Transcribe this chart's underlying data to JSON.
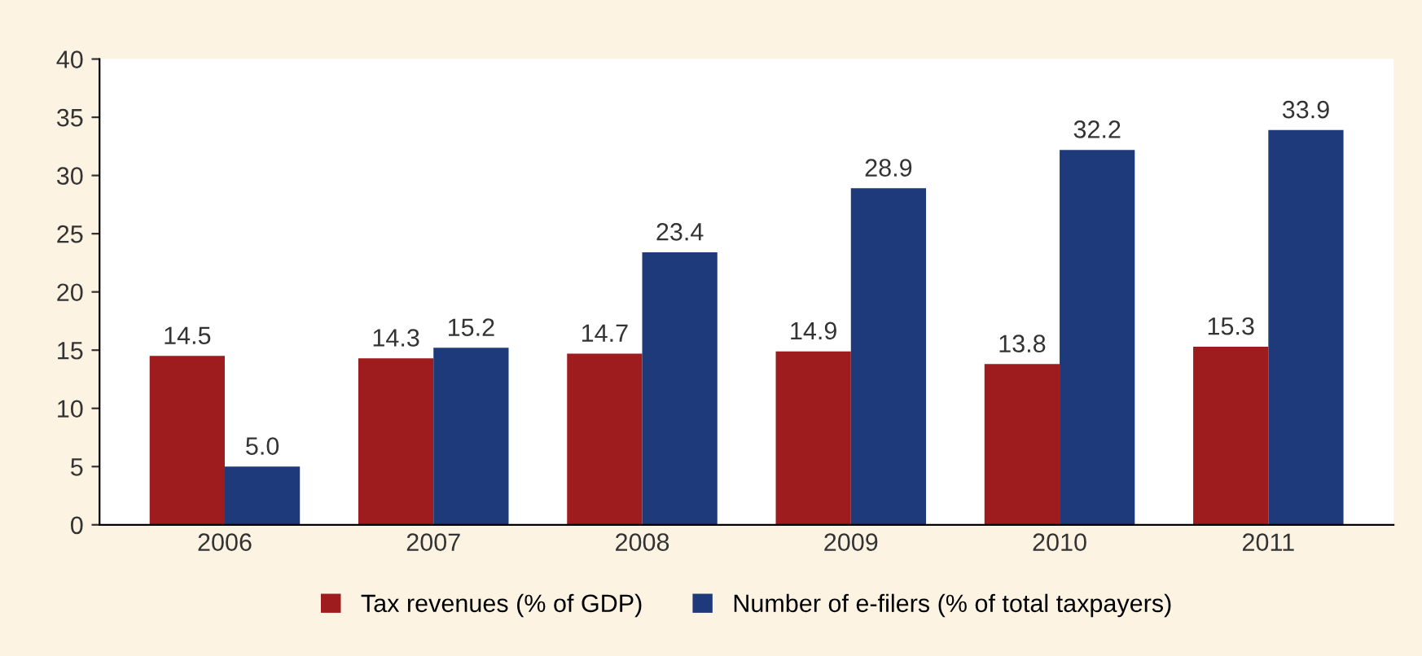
{
  "chart_data": {
    "type": "bar",
    "categories": [
      "2006",
      "2007",
      "2008",
      "2009",
      "2010",
      "2011"
    ],
    "series": [
      {
        "name": "Tax revenues (% of GDP)",
        "color": "#9e1b1e",
        "values": [
          14.5,
          14.3,
          14.7,
          14.9,
          13.8,
          15.3
        ]
      },
      {
        "name": "Number of e-filers (% of total taxpayers)",
        "color": "#1f3a7a",
        "values": [
          5.0,
          15.2,
          23.4,
          28.9,
          32.2,
          33.9
        ]
      }
    ],
    "value_labels": [
      [
        "14.5",
        "14.3",
        "14.7",
        "14.9",
        "13.8",
        "15.3"
      ],
      [
        "5.0",
        "15.2",
        "23.4",
        "28.9",
        "32.2",
        "33.9"
      ]
    ],
    "ylim": [
      0,
      40
    ],
    "yticks": [
      0,
      5,
      10,
      15,
      20,
      25,
      30,
      35,
      40
    ],
    "grid": false,
    "legend": "bottom"
  }
}
